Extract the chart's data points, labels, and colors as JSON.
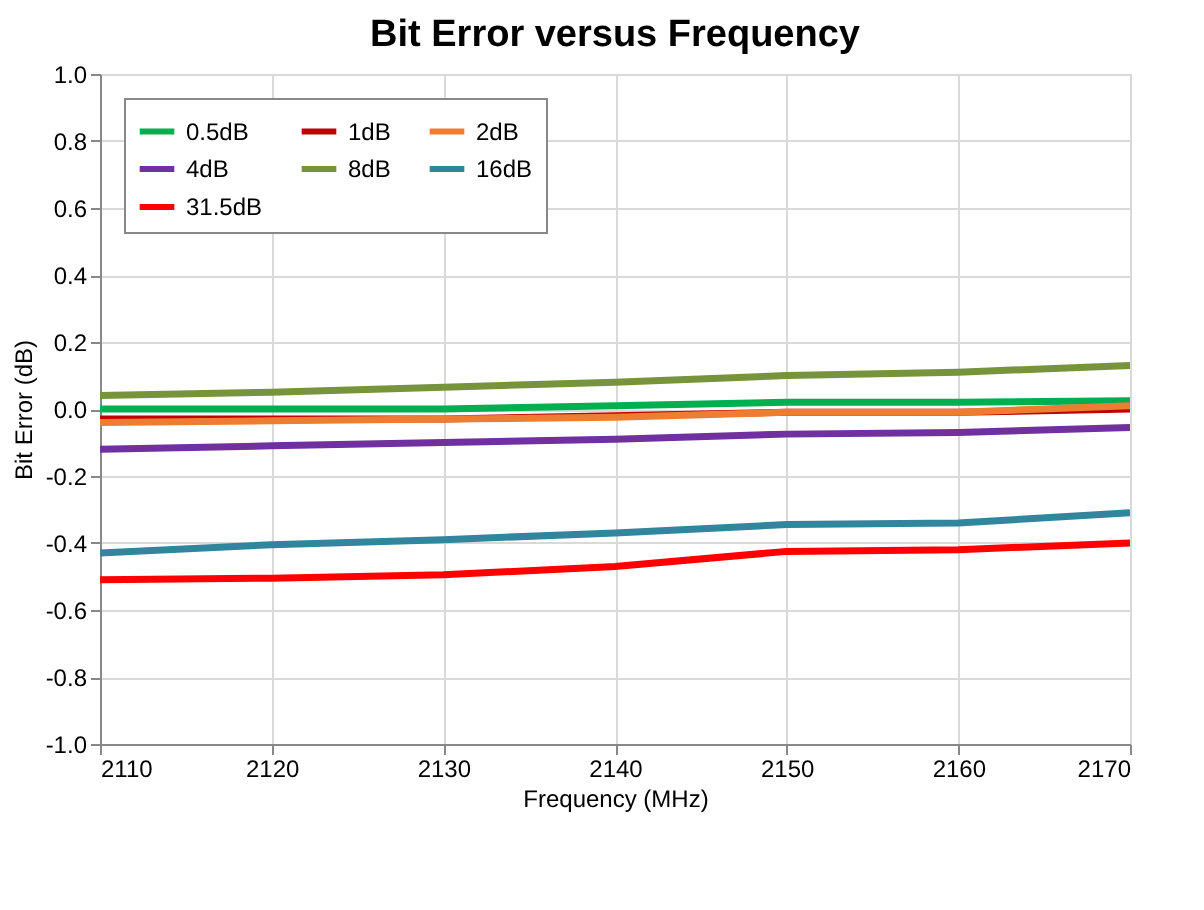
{
  "chart_data": {
    "type": "line",
    "title": "Bit Error versus Frequency",
    "xlabel": "Frequency (MHz)",
    "ylabel": "Bit Error (dB)",
    "x": [
      2110,
      2120,
      2130,
      2140,
      2150,
      2160,
      2170
    ],
    "series": [
      {
        "name": "0.5dB",
        "color": "#00b050",
        "values": [
          0.0,
          0.0,
          0.0,
          0.01,
          0.02,
          0.02,
          0.025
        ]
      },
      {
        "name": "1dB",
        "color": "#c00000",
        "values": [
          -0.03,
          -0.03,
          -0.03,
          -0.02,
          -0.01,
          -0.01,
          0.0
        ]
      },
      {
        "name": "2dB",
        "color": "#ed7d31",
        "values": [
          -0.04,
          -0.035,
          -0.03,
          -0.025,
          -0.01,
          -0.01,
          0.01
        ]
      },
      {
        "name": "4dB",
        "color": "#7030a0",
        "values": [
          -0.12,
          -0.11,
          -0.1,
          -0.09,
          -0.075,
          -0.07,
          -0.055
        ]
      },
      {
        "name": "8dB",
        "color": "#77933c",
        "values": [
          0.04,
          0.05,
          0.065,
          0.08,
          0.1,
          0.11,
          0.13
        ]
      },
      {
        "name": "16dB",
        "color": "#31859c",
        "values": [
          -0.43,
          -0.405,
          -0.39,
          -0.37,
          -0.345,
          -0.34,
          -0.31
        ]
      },
      {
        "name": "31.5dB",
        "color": "#ff0000",
        "values": [
          -0.51,
          -0.505,
          -0.495,
          -0.47,
          -0.425,
          -0.42,
          -0.4
        ]
      }
    ],
    "xlim": [
      2110,
      2170
    ],
    "xticks": [
      2110,
      2120,
      2130,
      2140,
      2150,
      2160,
      2170
    ],
    "ylim": [
      -1.0,
      1.0
    ],
    "yticks": [
      {
        "value": -1.0,
        "label": "-1.0"
      },
      {
        "value": -0.8,
        "label": "-0.8"
      },
      {
        "value": -0.6,
        "label": "-0.6"
      },
      {
        "value": -0.4,
        "label": "-0.4"
      },
      {
        "value": -0.2,
        "label": "-0.2"
      },
      {
        "value": 0.0,
        "label": "0.0"
      },
      {
        "value": 0.2,
        "label": "0.2"
      },
      {
        "value": 0.4,
        "label": "0.4"
      },
      {
        "value": 0.6,
        "label": "0.6"
      },
      {
        "value": 0.8,
        "label": "0.8"
      },
      {
        "value": 1.0,
        "label": "1.0"
      }
    ],
    "grid": true,
    "legend": "top left",
    "marker": "none",
    "line_style": "solid"
  }
}
